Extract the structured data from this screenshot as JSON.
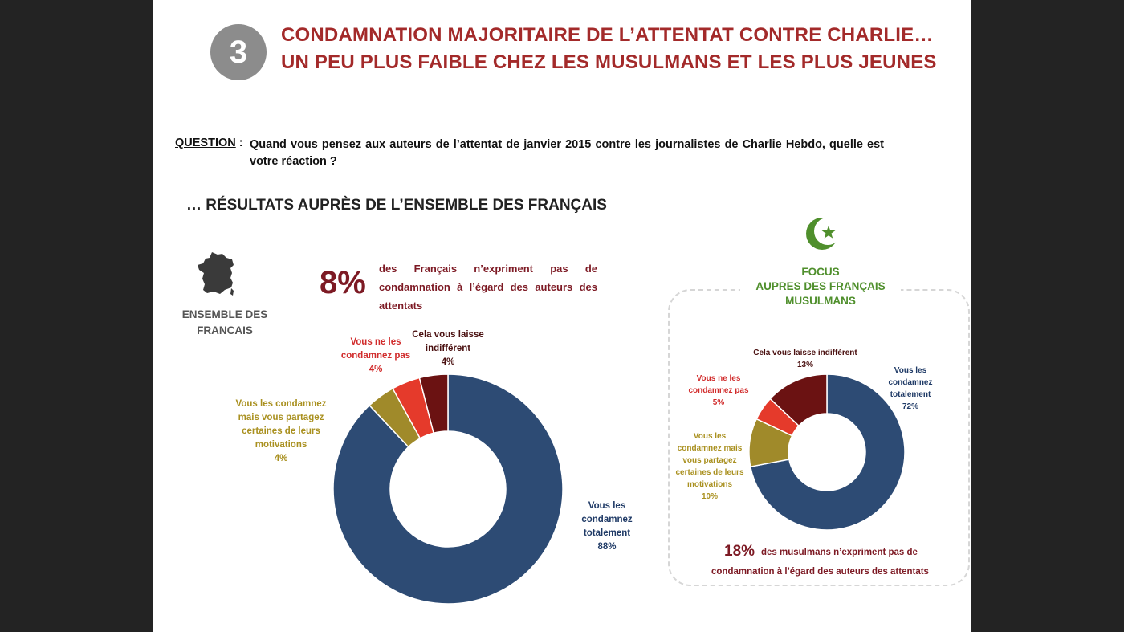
{
  "header": {
    "number": "3",
    "title_line1": "CONDAMNATION MAJORITAIRE DE L’ATTENTAT CONTRE CHARLIE…",
    "title_line2": "UN PEU PLUS FAIBLE CHEZ LES MUSULMANS ET LES PLUS JEUNES"
  },
  "question": {
    "label": "QUESTION",
    "separator": " :",
    "text": "Quand vous pensez aux auteurs de l’attentat de janvier 2015 contre les journalistes de Charlie Hebdo, quelle est votre réaction ?"
  },
  "section_heading": "… RÉSULTATS AUPRÈS DE L’ENSEMBLE DES FRANÇAIS",
  "france": {
    "label_line1": "ENSEMBLE DES",
    "label_line2": "FRANCAIS",
    "big_percent": "8%",
    "big_text": "des Français n’expriment pas de condamnation à l’égard des auteurs des attentats"
  },
  "focus": {
    "heading_line1": "FOCUS",
    "heading_line2": "AUPRES DES FRANÇAIS",
    "heading_line3": "MUSULMANS",
    "percent": "18%",
    "text_line1": "des musulmans n’expriment pas de",
    "text_line2": "condamnation à l’égard des auteurs des attentats"
  },
  "colors": {
    "totally": "#2d4b74",
    "motivations": "#a08a2a",
    "not_condemn": "#e53a2b",
    "indifferent": "#6b1212",
    "title": "#a32a2a",
    "focus_green": "#4f8f2c"
  },
  "icons": [
    "france-map-icon",
    "crescent-star-icon"
  ],
  "chart_data": [
    {
      "type": "pie",
      "donut": true,
      "title": "ENSEMBLE DES FRANCAIS",
      "categories": [
        "Vous les condamnez totalement",
        "Vous les condamnez mais vous partagez certaines de leurs motivations",
        "Vous ne les condamnez pas",
        "Cela vous laisse indifférent"
      ],
      "values": [
        88,
        4,
        4,
        4
      ],
      "labels": {
        "totally": {
          "l1": "Vous les",
          "l2": "condamnez",
          "l3": "totalement",
          "pct": "88%"
        },
        "motivations": {
          "l1": "Vous les condamnez",
          "l2": "mais vous partagez",
          "l3": "certaines de leurs",
          "l4": "motivations",
          "pct": "4%"
        },
        "not_condemn": {
          "l1": "Vous ne les",
          "l2": "condamnez pas",
          "pct": "4%"
        },
        "indifferent": {
          "l1": "Cela vous laisse",
          "l2": "indifférent",
          "pct": "4%"
        }
      }
    },
    {
      "type": "pie",
      "donut": true,
      "title": "FOCUS AUPRES DES FRANÇAIS MUSULMANS",
      "categories": [
        "Vous les condamnez totalement",
        "Vous les condamnez mais vous partagez certaines de leurs motivations",
        "Vous ne les condamnez pas",
        "Cela vous laisse indifférent"
      ],
      "values": [
        72,
        10,
        5,
        13
      ],
      "labels": {
        "totally": {
          "l1": "Vous les",
          "l2": "condamnez",
          "l3": "totalement",
          "pct": "72%"
        },
        "motivations": {
          "l1": "Vous les",
          "l2": "condamnez mais",
          "l3": "vous partagez",
          "l4": "certaines de leurs",
          "l5": "motivations",
          "pct": "10%"
        },
        "not_condemn": {
          "l1": "Vous ne les",
          "l2": "condamnez pas",
          "pct": "5%"
        },
        "indifferent": {
          "l1": "Cela vous laisse indifférent",
          "pct": "13%"
        }
      }
    }
  ]
}
